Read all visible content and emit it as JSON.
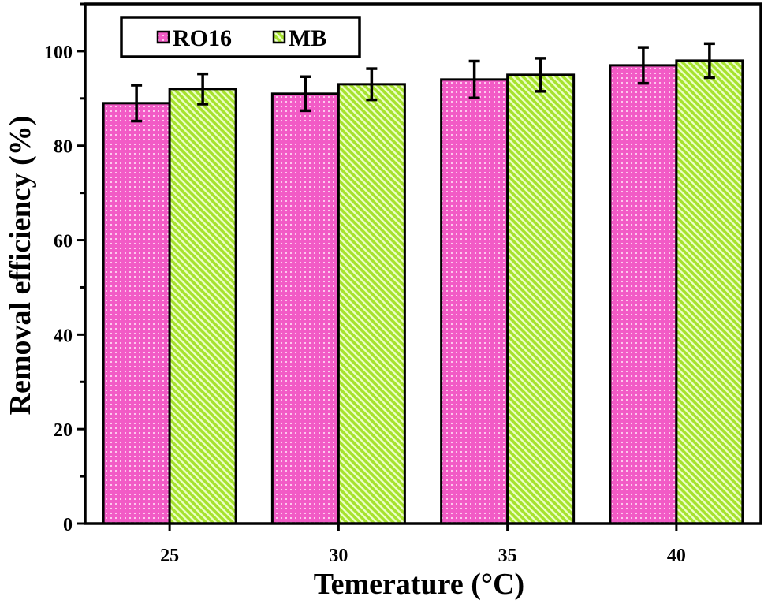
{
  "chart_data": {
    "type": "bar",
    "xlabel": "Temerature (°C)",
    "ylabel": "Removal efficiency (%)",
    "categories": [
      "25",
      "30",
      "35",
      "40"
    ],
    "series": [
      {
        "name": "RO16",
        "values": [
          89,
          91,
          94,
          97
        ],
        "errors": [
          3.8,
          3.6,
          3.9,
          3.8
        ],
        "color": "#f25bc6",
        "pattern": "dots"
      },
      {
        "name": "MB",
        "values": [
          92,
          93,
          95,
          98
        ],
        "errors": [
          3.2,
          3.3,
          3.5,
          3.6
        ],
        "color": "#a6e22e",
        "pattern": "diagonal-stripes"
      }
    ],
    "ylim": [
      0,
      110
    ],
    "yticks": [
      0,
      20,
      40,
      60,
      80,
      100
    ],
    "grid": false,
    "legend_position": "top-left"
  }
}
